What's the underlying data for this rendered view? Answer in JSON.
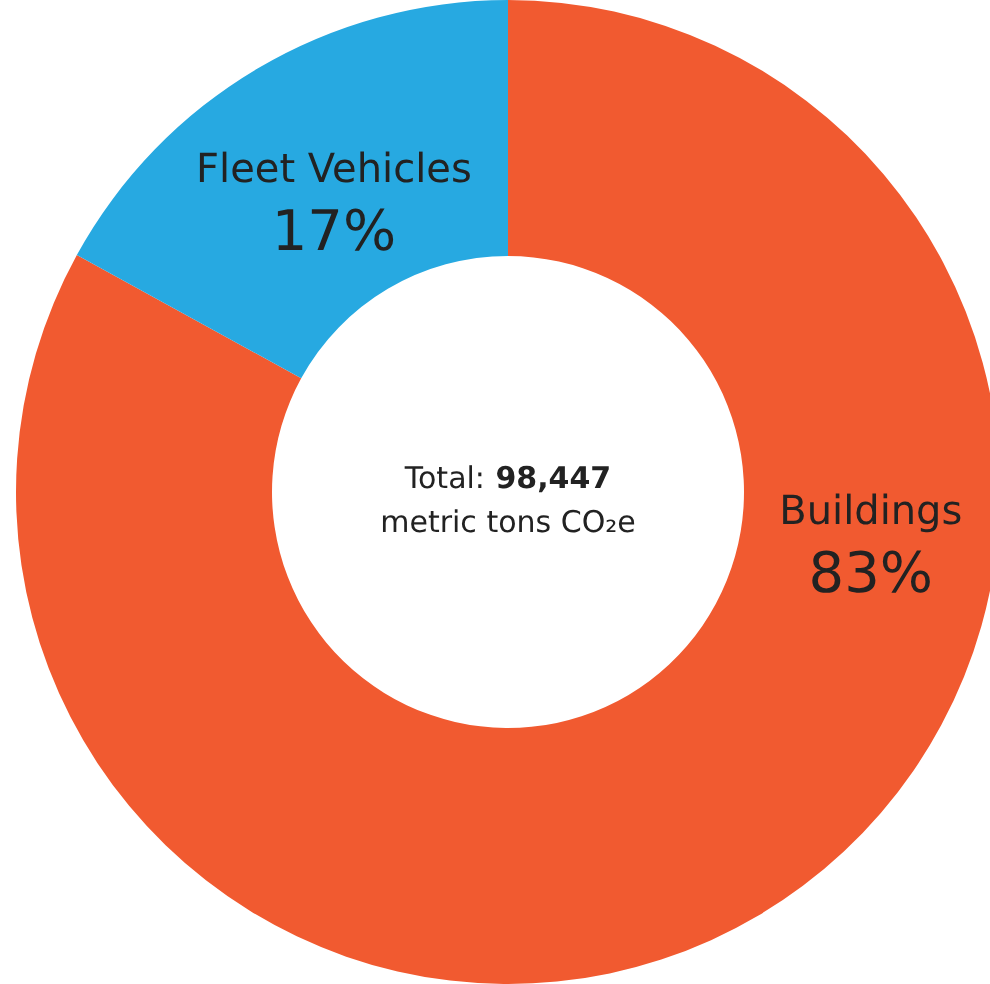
{
  "chart_data": {
    "type": "donut",
    "categories": [
      "Buildings",
      "Fleet Vehicles"
    ],
    "values": [
      83,
      17
    ],
    "colors": [
      "#f15a30",
      "#27a9e1"
    ],
    "value_labels": [
      "83%",
      "17%"
    ],
    "annotations": [
      "Total:",
      "98,447",
      "metric tons CO₂e"
    ]
  }
}
